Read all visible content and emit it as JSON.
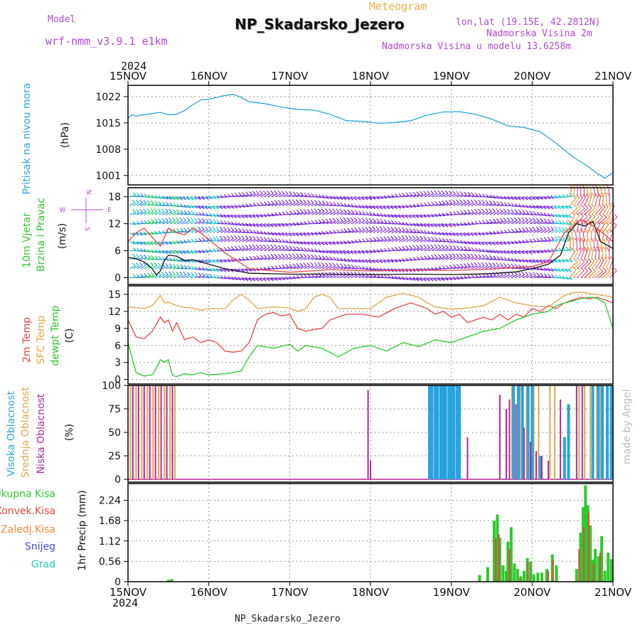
{
  "header": {
    "model_label": "Model",
    "model_name": "wrf-nmm_v3.9.1 e1km",
    "meteogram": "Meteogram",
    "station": "NP_Skadarsko_Jezero",
    "lonlat": "lon,lat (19.15E, 42.2812N)",
    "altitude": "Nadmorska Visina 2m",
    "model_altitude": "Nadmorska Visina u modelu 13.6258m",
    "year_top": "2024",
    "year_bottom": "2024"
  },
  "footer": {
    "station": "NP_Skadarsko_Jezero"
  },
  "watermark": "made by Angel",
  "colors": {
    "pressure": "#29a3e0",
    "temp2m": "#e84545",
    "sfc": "#e0a848",
    "dew": "#22cc22",
    "high": "#29a3e0",
    "mid": "#e0a848",
    "low": "#b02a9a",
    "total": "#2ec92e",
    "conv": "#e84545",
    "frozen": "#f08a3a",
    "snow": "#4848e0",
    "hail": "#22c9c9",
    "label_purple": "#b04ad6"
  },
  "chart_data": [
    {
      "id": "pressure",
      "type": "line",
      "title": "Pritisak na nivou mora",
      "ylabel": "(hPa)",
      "ylim": [
        998.5,
        1025
      ],
      "yticks": [
        1001,
        1008,
        1015,
        1022
      ],
      "xticks": [
        "15NOV",
        "16NOV",
        "17NOV",
        "18NOV",
        "19NOV",
        "20NOV",
        "21NOV"
      ],
      "grid": true,
      "series": [
        {
          "color_key": "pressure",
          "x": [
            0,
            0.05,
            0.1,
            0.2,
            0.3,
            0.4,
            0.5,
            0.6,
            0.7,
            0.8,
            0.9,
            1.0,
            1.1,
            1.2,
            1.3,
            1.4,
            1.5,
            1.7,
            1.9,
            2.1,
            2.3,
            2.5,
            2.7,
            2.9,
            3.1,
            3.3,
            3.5,
            3.7,
            3.9,
            4.1,
            4.3,
            4.5,
            4.7,
            4.9,
            5.1,
            5.3,
            5.5,
            5.7,
            5.8,
            5.9,
            6.0
          ],
          "y": [
            1016.3,
            1017.2,
            1016.8,
            1017.2,
            1017.5,
            1017.8,
            1017.2,
            1017.3,
            1018.3,
            1019.8,
            1021.1,
            1021.3,
            1021.8,
            1022.3,
            1022.6,
            1021.8,
            1020.6,
            1020.1,
            1019.2,
            1018.6,
            1018.4,
            1017.3,
            1015.6,
            1015.4,
            1014.9,
            1015.1,
            1015.6,
            1017.1,
            1017.9,
            1018.0,
            1017.3,
            1016.0,
            1014.2,
            1013.8,
            1012.6,
            1009.6,
            1006.0,
            1003.3,
            1001.6,
            1000.3,
            1001.8
          ]
        }
      ]
    },
    {
      "id": "wind",
      "type": "line",
      "title": "10m Vjetar",
      "title2": "Brzina i Pravac",
      "ylabel": "(m/s)",
      "compass": {
        "n": "N",
        "s": "S",
        "e": "E",
        "w": "W"
      },
      "ylim": [
        -1.5,
        20
      ],
      "yticks": [
        0,
        6,
        12,
        18
      ],
      "grid": true,
      "series": [
        {
          "name": "speed",
          "color": "#111111",
          "x": [
            0,
            0.1,
            0.2,
            0.3,
            0.35,
            0.4,
            0.45,
            0.5,
            0.6,
            0.7,
            0.8,
            0.9,
            1.0,
            1.2,
            1.5,
            2.0,
            2.5,
            3.0,
            3.5,
            4.0,
            4.5,
            4.8,
            5.0,
            5.2,
            5.35,
            5.45,
            5.55,
            5.65,
            5.75,
            5.85,
            6.0
          ],
          "y": [
            4.5,
            4.2,
            3.5,
            2.0,
            0.6,
            1.5,
            3.8,
            5.0,
            4.8,
            3.8,
            4.0,
            3.5,
            3.0,
            2.0,
            1.0,
            0.8,
            0.8,
            0.7,
            0.8,
            0.7,
            0.9,
            1.3,
            2.0,
            3.0,
            5.0,
            10.0,
            12.0,
            11.5,
            12.5,
            8.0,
            6.5
          ]
        },
        {
          "name": "gust",
          "color": "#e84545",
          "x": [
            0,
            0.1,
            0.2,
            0.3,
            0.4,
            0.5,
            0.6,
            0.7,
            0.8,
            0.9,
            1.0,
            1.2,
            1.5,
            2.0,
            2.5,
            3.0,
            3.5,
            4.0,
            4.5,
            5.0,
            5.2,
            5.4,
            5.6,
            5.8,
            6.0
          ],
          "y": [
            8.0,
            10.0,
            11.0,
            9.0,
            7.0,
            11.0,
            10.0,
            9.5,
            11.0,
            10.0,
            8.5,
            5.5,
            2.0,
            1.2,
            1.8,
            1.5,
            1.7,
            1.6,
            1.9,
            2.5,
            3.5,
            10.0,
            13.0,
            11.0,
            8.0
          ]
        }
      ]
    },
    {
      "id": "temperature",
      "type": "line",
      "title": "2m Temp",
      "title2": "SFC Temp",
      "title3": "dewpt Temp",
      "ylabel": "(C)",
      "ylim": [
        -0.8,
        16.5
      ],
      "yticks": [
        0,
        3,
        6,
        9,
        12,
        15
      ],
      "grid": true,
      "series": [
        {
          "name": "2m Temp",
          "color_key": "temp2m",
          "x": [
            0,
            0.1,
            0.2,
            0.3,
            0.4,
            0.45,
            0.5,
            0.55,
            0.6,
            0.7,
            0.8,
            0.9,
            1.0,
            1.1,
            1.2,
            1.3,
            1.4,
            1.5,
            1.6,
            1.7,
            1.8,
            1.9,
            2.0,
            2.1,
            2.2,
            2.3,
            2.4,
            2.5,
            2.7,
            2.9,
            3.1,
            3.3,
            3.5,
            3.7,
            3.8,
            3.9,
            4.0,
            4.1,
            4.2,
            4.3,
            4.4,
            4.5,
            4.6,
            4.7,
            4.8,
            4.9,
            5.0,
            5.1,
            5.2,
            5.3,
            5.4,
            5.5,
            5.6,
            5.7,
            5.8,
            5.9,
            6.0
          ],
          "y": [
            10.5,
            7.5,
            7.2,
            8.5,
            11.0,
            10.0,
            10.5,
            8.5,
            10.0,
            7.0,
            7.5,
            6.5,
            7.0,
            6.5,
            5.0,
            4.8,
            5.0,
            6.5,
            10.5,
            11.5,
            11.8,
            11.2,
            11.5,
            9.0,
            8.5,
            8.8,
            9.0,
            10.5,
            11.5,
            11.5,
            11.0,
            12.5,
            13.5,
            12.5,
            11.5,
            12.0,
            11.0,
            11.5,
            10.0,
            10.5,
            11.0,
            10.5,
            11.5,
            10.5,
            11.5,
            11.0,
            12.5,
            12.0,
            13.0,
            12.5,
            13.5,
            14.0,
            14.5,
            14.2,
            14.5,
            14.0,
            13.5
          ]
        },
        {
          "name": "SFC Temp",
          "color_key": "sfc",
          "x": [
            0,
            0.2,
            0.3,
            0.4,
            0.45,
            0.5,
            0.6,
            0.7,
            0.8,
            0.9,
            1.0,
            1.2,
            1.3,
            1.4,
            1.5,
            1.6,
            1.8,
            2.0,
            2.1,
            2.2,
            2.3,
            2.4,
            2.5,
            2.6,
            2.8,
            3.0,
            3.2,
            3.4,
            3.6,
            3.7,
            3.8,
            4.0,
            4.2,
            4.4,
            4.6,
            4.8,
            5.0,
            5.2,
            5.3,
            5.4,
            5.5,
            5.6,
            5.8,
            6.0
          ],
          "y": [
            12.8,
            12.5,
            13.0,
            14.8,
            13.5,
            13.6,
            13.0,
            12.7,
            12.6,
            12.2,
            12.5,
            12.5,
            14.0,
            15.0,
            14.0,
            12.5,
            12.8,
            12.6,
            12.0,
            12.5,
            14.5,
            15.0,
            14.5,
            12.5,
            12.5,
            12.5,
            14.5,
            15.2,
            14.5,
            13.5,
            12.8,
            12.4,
            12.6,
            13.0,
            14.5,
            13.5,
            13.0,
            12.8,
            13.8,
            14.8,
            15.3,
            15.4,
            15.0,
            14.5
          ]
        },
        {
          "name": "dewpt Temp",
          "color_key": "dew",
          "x": [
            0,
            0.1,
            0.2,
            0.3,
            0.35,
            0.4,
            0.45,
            0.5,
            0.55,
            0.6,
            0.7,
            0.8,
            0.9,
            1.0,
            1.2,
            1.4,
            1.5,
            1.6,
            1.8,
            2.0,
            2.1,
            2.2,
            2.4,
            2.6,
            2.8,
            3.0,
            3.2,
            3.4,
            3.6,
            3.8,
            4.0,
            4.2,
            4.4,
            4.6,
            4.8,
            5.0,
            5.2,
            5.3,
            5.4,
            5.5,
            5.6,
            5.7,
            5.8,
            5.9,
            6.0
          ],
          "y": [
            6.5,
            1.2,
            0.6,
            0.8,
            2.0,
            3.5,
            3.0,
            3.5,
            0.7,
            0.5,
            1.0,
            0.8,
            1.2,
            0.8,
            1.0,
            1.5,
            4.0,
            6.0,
            5.5,
            6.2,
            5.0,
            6.0,
            5.5,
            4.0,
            5.5,
            6.0,
            5.0,
            6.5,
            5.8,
            7.0,
            6.5,
            7.5,
            8.5,
            9.0,
            10.5,
            11.5,
            12.0,
            13.0,
            13.5,
            13.8,
            14.2,
            14.5,
            14.3,
            13.5,
            9.0
          ]
        }
      ]
    },
    {
      "id": "clouds",
      "type": "bar",
      "title": "Visoka Oblacnost",
      "title2": "Srednja Oblacnost",
      "title3": "Niska Oblacnost",
      "ylabel": "(%)",
      "ylim": [
        -3,
        100
      ],
      "yticks": [
        0,
        25,
        50,
        75,
        100
      ],
      "grid": true,
      "series": [
        {
          "name": "Srednja",
          "color_key": "mid",
          "x": [
            0.03,
            0.1,
            0.17,
            0.24,
            0.31,
            0.38,
            0.45,
            0.52,
            0.58,
            4.75,
            4.85,
            4.93,
            5.02,
            5.08,
            5.22,
            5.28,
            5.58,
            5.65,
            5.72,
            5.8,
            5.85,
            5.92,
            5.97
          ],
          "y": [
            100,
            100,
            100,
            100,
            100,
            100,
            100,
            100,
            100,
            100,
            100,
            100,
            100,
            100,
            100,
            100,
            100,
            100,
            100,
            100,
            100,
            100,
            100
          ]
        },
        {
          "name": "Visoka",
          "color_key": "high",
          "x": [
            3.73,
            3.76,
            3.8,
            3.83,
            3.87,
            3.9,
            3.93,
            3.97,
            4.0,
            4.03,
            4.07,
            4.1,
            4.77,
            4.83,
            4.88,
            4.95,
            5.0,
            5.1,
            5.4,
            5.45,
            5.75,
            5.82,
            5.87,
            5.93,
            5.98
          ],
          "y": [
            100,
            100,
            100,
            100,
            100,
            100,
            100,
            100,
            100,
            100,
            100,
            100,
            100,
            100,
            100,
            100,
            100,
            25,
            45,
            80,
            100,
            100,
            100,
            100,
            100
          ]
        },
        {
          "name": "Niska",
          "color_key": "low",
          "x": [
            0.06,
            0.13,
            0.2,
            0.27,
            0.34,
            0.41,
            0.48,
            0.55,
            2.97,
            3.0,
            4.2,
            4.6,
            4.68,
            4.72,
            4.8,
            4.9,
            4.98,
            5.05,
            5.12,
            5.2,
            5.35,
            5.55,
            5.62
          ],
          "y": [
            100,
            100,
            100,
            100,
            100,
            100,
            100,
            100,
            95,
            20,
            45,
            90,
            75,
            85,
            80,
            55,
            40,
            30,
            25,
            20,
            85,
            100,
            100
          ]
        }
      ]
    },
    {
      "id": "precip",
      "type": "bar",
      "ylabel": "1hr Precip (mm)",
      "legend": [
        "Ukupna Kisa",
        "Konvek.Kisa",
        "Zaledj.Kisa",
        "Snijeg",
        "Grad"
      ],
      "ylim": [
        0,
        2.7
      ],
      "yticks": [
        0,
        0.56,
        1.12,
        1.68,
        2.24
      ],
      "xticks": [
        "15NOV",
        "16NOV",
        "17NOV",
        "18NOV",
        "19NOV",
        "20NOV",
        "21NOV"
      ],
      "grid": true,
      "series": [
        {
          "name": "Ukupna Kisa",
          "color_key": "total",
          "x": [
            0.5,
            0.54,
            4.35,
            4.45,
            4.53,
            4.57,
            4.6,
            4.64,
            4.68,
            4.7,
            4.74,
            4.78,
            4.82,
            4.86,
            4.9,
            4.94,
            4.98,
            5.02,
            5.07,
            5.12,
            5.18,
            5.25,
            5.3,
            5.55,
            5.6,
            5.63,
            5.66,
            5.69,
            5.72,
            5.75,
            5.78,
            5.82,
            5.86,
            5.9,
            5.94,
            5.98
          ],
          "y": [
            0.05,
            0.07,
            0.18,
            0.4,
            1.68,
            1.85,
            1.2,
            0.45,
            0.3,
            1.1,
            1.5,
            0.5,
            0.35,
            0.15,
            0.3,
            0.65,
            0.55,
            0.2,
            0.25,
            0.25,
            0.35,
            0.75,
            0.45,
            0.35,
            1.35,
            2.05,
            2.65,
            2.1,
            1.55,
            0.6,
            0.9,
            0.7,
            1.25,
            0.3,
            0.8,
            0.62
          ]
        },
        {
          "name": "Konvek.Kisa",
          "color_key": "conv",
          "x": [
            4.55,
            4.59,
            4.72,
            4.85,
            4.95,
            5.2,
            5.26,
            5.58,
            5.64,
            5.7,
            5.76,
            5.84
          ],
          "y": [
            1.2,
            1.3,
            0.9,
            0.1,
            0.55,
            0.3,
            0.6,
            0.9,
            1.5,
            1.9,
            0.5,
            0.8
          ]
        }
      ]
    }
  ]
}
